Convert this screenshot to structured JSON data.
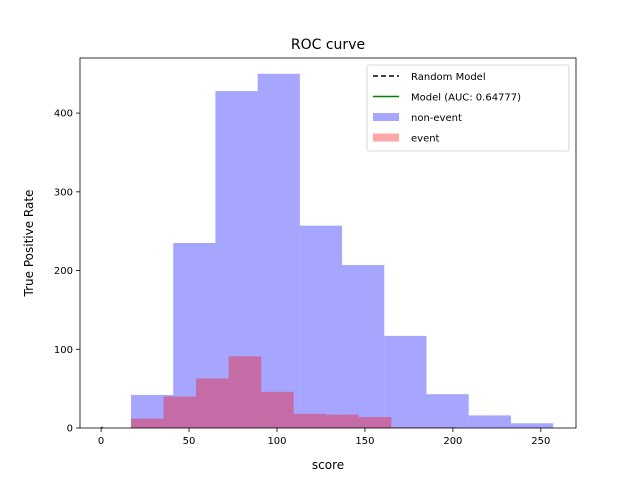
{
  "chart_data": {
    "type": "bar",
    "title": "ROC curve",
    "xlabel": "score",
    "ylabel": "True Positive Rate",
    "xlim": [
      -12,
      270
    ],
    "ylim": [
      0,
      470
    ],
    "xticks": [
      0,
      50,
      100,
      150,
      200,
      250
    ],
    "yticks": [
      0,
      100,
      200,
      300,
      400
    ],
    "grid": false,
    "legend_position": "top-right",
    "series": [
      {
        "name": "non-event",
        "kind": "histogram",
        "color": "#0000ff",
        "opacity": 0.35,
        "bin_edges": [
          17,
          41,
          65,
          89,
          113,
          137,
          161,
          185,
          209,
          233,
          257
        ],
        "values": [
          42,
          235,
          428,
          450,
          257,
          207,
          117,
          43,
          16,
          6
        ]
      },
      {
        "name": "event",
        "kind": "histogram",
        "color": "#ff0000",
        "opacity": 0.35,
        "bin_edges": [
          17,
          35.5,
          54,
          72.5,
          91,
          109.5,
          128,
          146.5,
          165,
          183.5,
          202
        ],
        "values": [
          12,
          40,
          63,
          91,
          46,
          18,
          17,
          14,
          1,
          1
        ]
      },
      {
        "name": "Random Model",
        "kind": "line",
        "color": "#000000",
        "dash": true,
        "x": [
          0,
          1
        ],
        "y": [
          0,
          1
        ]
      },
      {
        "name": "Model (AUC: 0.64777)",
        "kind": "line",
        "color": "#008000",
        "dash": false,
        "x": [
          0,
          0.05,
          0.2,
          0.5,
          1
        ],
        "y": [
          0,
          0.12,
          0.35,
          0.7,
          1
        ]
      }
    ],
    "legend": [
      {
        "label": "Random Model",
        "symbol": "dash-line",
        "color": "#000000"
      },
      {
        "label": "Model (AUC: 0.64777)",
        "symbol": "line",
        "color": "#008000"
      },
      {
        "label": "non-event",
        "symbol": "patch",
        "color": "#0000ff"
      },
      {
        "label": "event",
        "symbol": "patch",
        "color": "#ff0000"
      }
    ]
  }
}
